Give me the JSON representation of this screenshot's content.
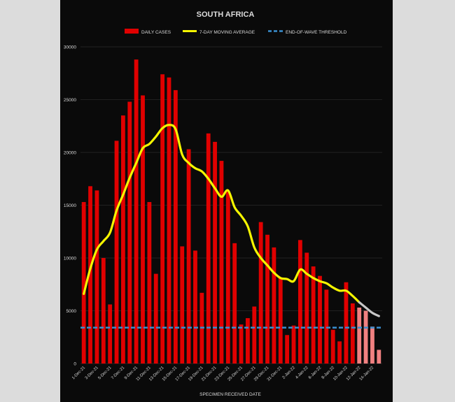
{
  "colors": {
    "background": "#0a0a0a",
    "bar": "#e00000",
    "bar_provisional": "#f08080",
    "moving_average": "#f5f500",
    "moving_average_provisional": "#c8c8c8",
    "threshold": "#3a8fd0",
    "text": "#dcdcdc",
    "grid": "#2a2a2a"
  },
  "chart_data": {
    "type": "bar",
    "title": "SOUTH AFRICA",
    "xlabel": "SPECIMEN RECEIVED DATE",
    "ylabel": "",
    "ylim": [
      0,
      30000
    ],
    "yticks": [
      0,
      5000,
      10000,
      15000,
      20000,
      25000,
      30000
    ],
    "grid": true,
    "legend_position": "top-center",
    "legend": [
      {
        "label": "DAILY CASES",
        "kind": "bar"
      },
      {
        "label": "7-DAY MOVING AVERAGE",
        "kind": "line"
      },
      {
        "label": "END-OF-WAVE THRESHOLD",
        "kind": "dashed-line"
      }
    ],
    "x_tick_labels": [
      "1-Dec-21",
      "3-Dec-21",
      "5-Dec-21",
      "7-Dec-21",
      "9-Dec-21",
      "11-Dec-21",
      "13-Dec-21",
      "15-Dec-21",
      "17-Dec-21",
      "19-Dec-21",
      "21-Dec-21",
      "23-Dec-21",
      "25-Dec-21",
      "27-Dec-21",
      "29-Dec-21",
      "31-Dec-21",
      "2-Jan-22",
      "4-Jan-22",
      "6-Jan-22",
      "8-Jan-22",
      "10-Jan-22",
      "12-Jan-22",
      "14-Jan-22"
    ],
    "dates": [
      "1-Dec-21",
      "2-Dec-21",
      "3-Dec-21",
      "4-Dec-21",
      "5-Dec-21",
      "6-Dec-21",
      "7-Dec-21",
      "8-Dec-21",
      "9-Dec-21",
      "10-Dec-21",
      "11-Dec-21",
      "12-Dec-21",
      "13-Dec-21",
      "14-Dec-21",
      "15-Dec-21",
      "16-Dec-21",
      "17-Dec-21",
      "18-Dec-21",
      "19-Dec-21",
      "20-Dec-21",
      "21-Dec-21",
      "22-Dec-21",
      "23-Dec-21",
      "24-Dec-21",
      "25-Dec-21",
      "26-Dec-21",
      "27-Dec-21",
      "28-Dec-21",
      "29-Dec-21",
      "30-Dec-21",
      "31-Dec-21",
      "1-Jan-22",
      "2-Jan-22",
      "3-Jan-22",
      "4-Jan-22",
      "5-Jan-22",
      "6-Jan-22",
      "7-Jan-22",
      "8-Jan-22",
      "9-Jan-22",
      "10-Jan-22",
      "11-Jan-22",
      "12-Jan-22",
      "13-Jan-22",
      "14-Jan-22",
      "15-Jan-22"
    ],
    "series": [
      {
        "name": "DAILY CASES",
        "type": "bar",
        "values": [
          15300,
          16800,
          16400,
          10000,
          5600,
          21100,
          23500,
          24800,
          28800,
          25400,
          15300,
          8500,
          27400,
          27100,
          25900,
          11100,
          20300,
          10700,
          6700,
          21800,
          21000,
          19200,
          16300,
          11400,
          3700,
          4300,
          5400,
          13400,
          12200,
          11000,
          8100,
          2700,
          3600,
          11700,
          10500,
          9200,
          8300,
          7000,
          3200,
          2100,
          7700,
          5700,
          5300,
          5000,
          3500,
          1300
        ],
        "provisional_from_index": 42
      },
      {
        "name": "7-DAY MOVING AVERAGE",
        "type": "line",
        "values": [
          6600,
          9000,
          10800,
          11600,
          12400,
          14500,
          16000,
          17600,
          19000,
          20400,
          20800,
          21500,
          22300,
          22600,
          22200,
          19800,
          19000,
          18500,
          18200,
          17500,
          16600,
          15800,
          16400,
          14800,
          14000,
          13000,
          11000,
          10000,
          9300,
          8600,
          8100,
          8000,
          7800,
          8900,
          8500,
          8100,
          7800,
          7600,
          7200,
          6900,
          6900,
          6400,
          5800,
          5300,
          4800,
          4500
        ],
        "provisional_from_index": 42
      },
      {
        "name": "END-OF-WAVE THRESHOLD",
        "type": "line",
        "constant": 3400
      }
    ]
  }
}
